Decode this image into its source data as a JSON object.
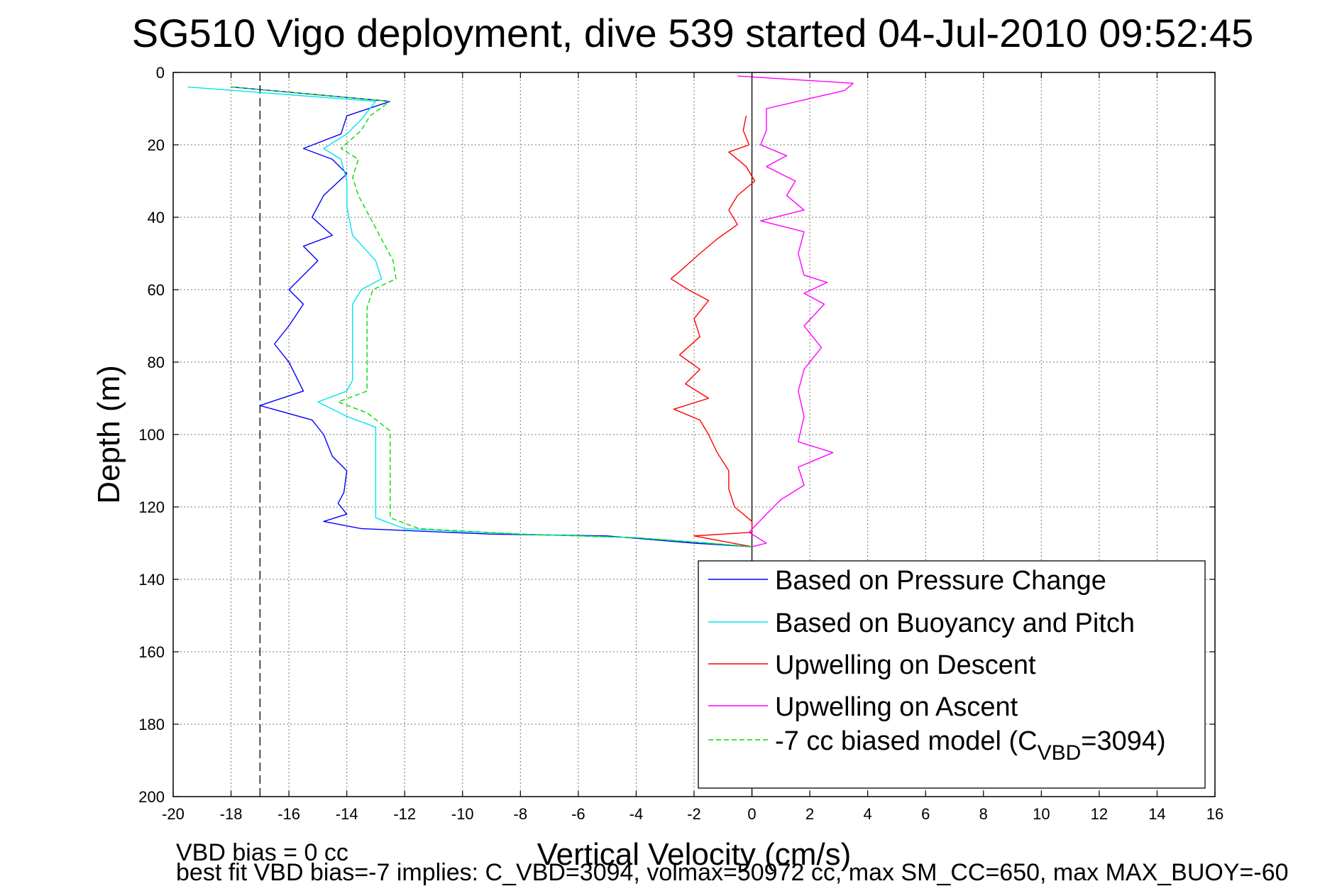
{
  "chart_data": {
    "type": "line",
    "title": "SG510 Vigo deployment, dive 539 started 04-Jul-2010 09:52:45",
    "xlabel": "Vertical Velocity (cm/s)",
    "ylabel": "Depth (m)",
    "xlim": [
      -20,
      16
    ],
    "ylim": [
      0,
      200
    ],
    "y_reversed": true,
    "grid": true,
    "x_ticks": [
      "-20",
      "-18",
      "-16",
      "-14",
      "-12",
      "-10",
      "-8",
      "-6",
      "-4",
      "-2",
      "0",
      "2",
      "4",
      "6",
      "8",
      "10",
      "12",
      "14",
      "16"
    ],
    "y_ticks": [
      "0",
      "20",
      "40",
      "60",
      "80",
      "100",
      "120",
      "140",
      "160",
      "180",
      "200"
    ],
    "reference_lines": [
      {
        "axis": "x",
        "value": 0,
        "style": "solid",
        "color": "#000000"
      },
      {
        "axis": "x",
        "value": -17,
        "style": "dashed",
        "color": "#000000"
      }
    ],
    "legend_position": "lower-right",
    "series": [
      {
        "name": "Based on Pressure Change",
        "color": "#0000ff",
        "dash": "solid",
        "points": [
          [
            -18,
            4
          ],
          [
            -12.5,
            8
          ],
          [
            -14,
            12
          ],
          [
            -14.2,
            17
          ],
          [
            -15.5,
            21
          ],
          [
            -14.5,
            24
          ],
          [
            -14,
            28
          ],
          [
            -14.8,
            34
          ],
          [
            -15.2,
            40
          ],
          [
            -14.5,
            45
          ],
          [
            -15.5,
            48
          ],
          [
            -15,
            52
          ],
          [
            -16,
            60
          ],
          [
            -15.5,
            64
          ],
          [
            -16,
            70
          ],
          [
            -16.5,
            75
          ],
          [
            -16,
            80
          ],
          [
            -15.5,
            88
          ],
          [
            -17,
            92
          ],
          [
            -15.2,
            96
          ],
          [
            -14.8,
            100
          ],
          [
            -14.5,
            106
          ],
          [
            -14,
            110
          ],
          [
            -14.1,
            116
          ],
          [
            -14.3,
            119
          ],
          [
            -14,
            122
          ],
          [
            -14.8,
            124
          ],
          [
            -13.5,
            126
          ],
          [
            -9,
            127.5
          ],
          [
            -5,
            128
          ],
          [
            -2,
            130
          ],
          [
            0,
            131
          ]
        ]
      },
      {
        "name": "Based on Buoyancy and Pitch",
        "color": "#00e5ee",
        "dash": "solid",
        "points": [
          [
            -19.5,
            4
          ],
          [
            -13,
            8
          ],
          [
            -13.5,
            13
          ],
          [
            -14,
            17
          ],
          [
            -14.8,
            21
          ],
          [
            -14.2,
            24
          ],
          [
            -14,
            30
          ],
          [
            -14,
            37
          ],
          [
            -13.8,
            45
          ],
          [
            -13,
            52
          ],
          [
            -12.8,
            57
          ],
          [
            -13.5,
            60
          ],
          [
            -13.8,
            64
          ],
          [
            -13.8,
            75
          ],
          [
            -13.8,
            85
          ],
          [
            -14,
            88
          ],
          [
            -15,
            91
          ],
          [
            -14,
            95
          ],
          [
            -13,
            98
          ],
          [
            -13,
            106
          ],
          [
            -13,
            112
          ],
          [
            -13,
            117
          ],
          [
            -13,
            123
          ],
          [
            -12,
            126
          ],
          [
            -8,
            127.5
          ],
          [
            -4,
            128.5
          ],
          [
            -1.5,
            130
          ],
          [
            0,
            131
          ]
        ]
      },
      {
        "name": "Upwelling on Descent",
        "color": "#ff0000",
        "dash": "solid",
        "points": [
          [
            -0.2,
            12
          ],
          [
            -0.3,
            16
          ],
          [
            -0.1,
            20
          ],
          [
            -0.8,
            22
          ],
          [
            -0.2,
            26
          ],
          [
            0.1,
            30
          ],
          [
            -0.5,
            34
          ],
          [
            -0.8,
            38
          ],
          [
            -0.5,
            42
          ],
          [
            -1.2,
            46
          ],
          [
            -1.8,
            50
          ],
          [
            -2.5,
            55
          ],
          [
            -2.8,
            57
          ],
          [
            -2.2,
            60
          ],
          [
            -1.5,
            63
          ],
          [
            -2,
            68
          ],
          [
            -1.8,
            73
          ],
          [
            -2.5,
            78
          ],
          [
            -1.8,
            82
          ],
          [
            -2.3,
            86
          ],
          [
            -1.5,
            90
          ],
          [
            -2.7,
            93
          ],
          [
            -1.8,
            96
          ],
          [
            -1.5,
            100
          ],
          [
            -1.2,
            105
          ],
          [
            -0.8,
            110
          ],
          [
            -0.8,
            115
          ],
          [
            -0.6,
            120
          ],
          [
            0,
            124
          ],
          [
            0,
            127
          ],
          [
            -2,
            128
          ],
          [
            0,
            131
          ]
        ]
      },
      {
        "name": "Upwelling on Ascent",
        "color": "#ff00ff",
        "dash": "solid",
        "points": [
          [
            -0.5,
            1
          ],
          [
            3.5,
            3
          ],
          [
            3.2,
            5
          ],
          [
            0.5,
            10
          ],
          [
            0.5,
            16
          ],
          [
            0.3,
            20
          ],
          [
            1.2,
            23
          ],
          [
            0.5,
            26
          ],
          [
            1.5,
            30
          ],
          [
            1.2,
            34
          ],
          [
            1.8,
            38
          ],
          [
            0.3,
            41
          ],
          [
            1.8,
            44
          ],
          [
            1.6,
            50
          ],
          [
            1.8,
            56
          ],
          [
            2.6,
            58
          ],
          [
            1.8,
            61
          ],
          [
            2.5,
            64
          ],
          [
            1.8,
            70
          ],
          [
            2.4,
            76
          ],
          [
            1.8,
            82
          ],
          [
            1.6,
            88
          ],
          [
            1.8,
            95
          ],
          [
            1.6,
            102
          ],
          [
            2.8,
            105
          ],
          [
            1.6,
            109
          ],
          [
            1.8,
            114
          ],
          [
            1.0,
            118
          ],
          [
            0.5,
            122
          ],
          [
            -0.1,
            127
          ],
          [
            0.5,
            130
          ],
          [
            0,
            131
          ]
        ]
      },
      {
        "name": "-7 cc biased model (C_VBD=3094)",
        "color": "#00dd00",
        "dash": "dashed",
        "points": [
          [
            -18,
            4
          ],
          [
            -12.5,
            8
          ],
          [
            -13.2,
            12
          ],
          [
            -13.5,
            16
          ],
          [
            -14.2,
            21
          ],
          [
            -13.6,
            24
          ],
          [
            -13.8,
            29
          ],
          [
            -13.6,
            34
          ],
          [
            -13.2,
            40
          ],
          [
            -12.8,
            46
          ],
          [
            -12.4,
            52
          ],
          [
            -12.3,
            57
          ],
          [
            -13.1,
            60
          ],
          [
            -13.3,
            65
          ],
          [
            -13.3,
            75
          ],
          [
            -13.3,
            88
          ],
          [
            -14.3,
            91
          ],
          [
            -13.3,
            94
          ],
          [
            -12.5,
            99
          ],
          [
            -12.5,
            106
          ],
          [
            -12.5,
            112
          ],
          [
            -12.5,
            118
          ],
          [
            -12.5,
            123
          ],
          [
            -11.5,
            126
          ],
          [
            -8,
            127.5
          ],
          [
            -4,
            128.5
          ],
          [
            -1.5,
            130
          ],
          [
            0,
            131
          ]
        ]
      }
    ]
  },
  "legend": {
    "entries": [
      {
        "label": "Based on Pressure Change",
        "color": "#0000ff",
        "dash": "solid"
      },
      {
        "label": "Based on Buoyancy and Pitch",
        "color": "#00e5ee",
        "dash": "solid"
      },
      {
        "label": "Upwelling on Descent",
        "color": "#ff0000",
        "dash": "solid"
      },
      {
        "label": "Upwelling on Ascent",
        "color": "#ff00ff",
        "dash": "solid"
      },
      {
        "label_main": "-7 cc biased model (C",
        "label_sub": "VBD",
        "label_tail": "=3094)",
        "color": "#00dd00",
        "dash": "dashed"
      }
    ]
  },
  "footer": {
    "line1": "VBD bias = 0 cc",
    "line2": "best fit VBD bias=-7 implies: C_VBD=3094, volmax=50972 cc, max SM_CC=650, max MAX_BUOY=-60"
  }
}
